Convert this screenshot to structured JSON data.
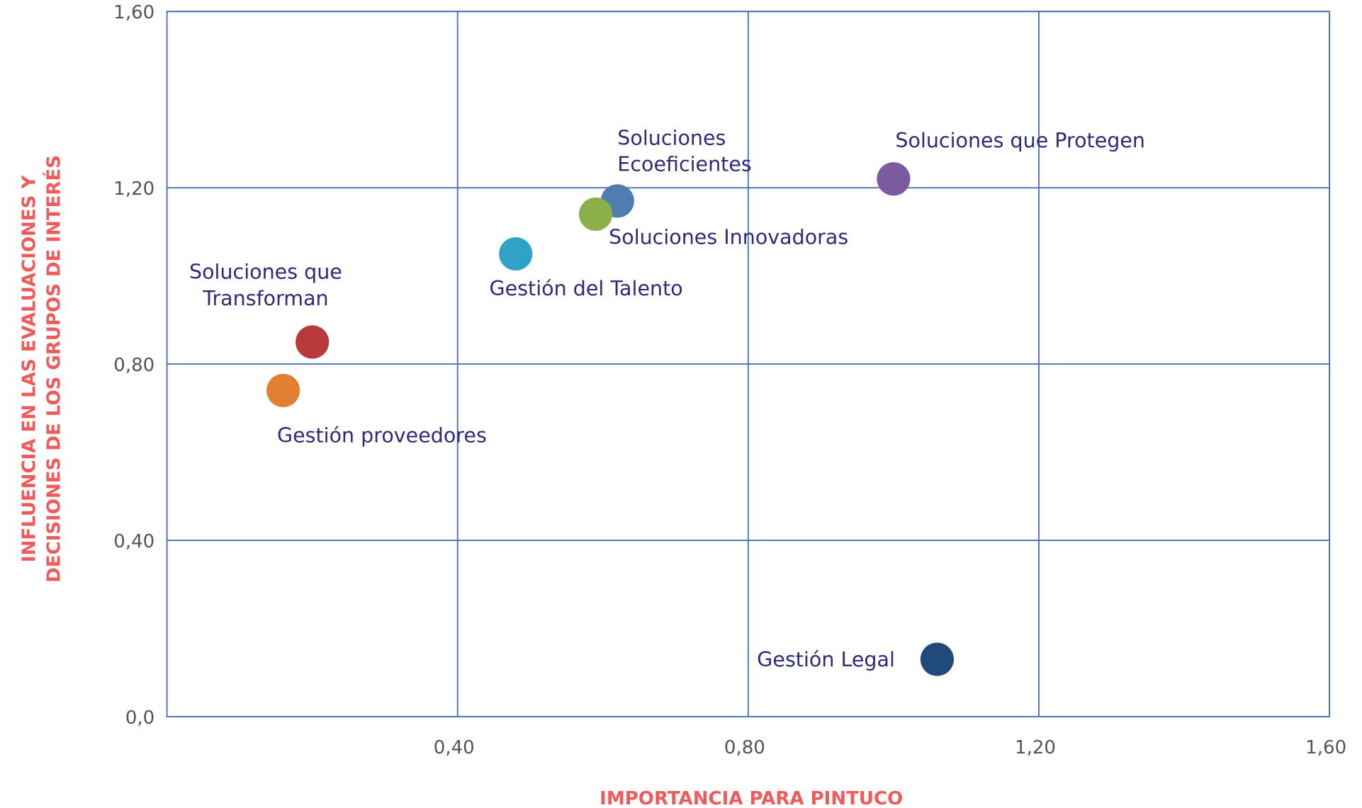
{
  "chart_data": {
    "type": "scatter",
    "x_label": "IMPORTANCIA PARA PINTUCO",
    "y_label": [
      "INFLUENCIA EN LAS EVALUACIONES Y",
      "DECISIONES DE LOS GRUPOS DE INTERÉS"
    ],
    "xlim": [
      0,
      1.6
    ],
    "ylim": [
      0,
      1.6
    ],
    "xticks": [
      {
        "value": 0.4,
        "label": "0,40"
      },
      {
        "value": 0.8,
        "label": "0,80"
      },
      {
        "value": 1.2,
        "label": "1,20"
      },
      {
        "value": 1.6,
        "label": "1,60"
      }
    ],
    "yticks": [
      {
        "value": 0,
        "label": "0,0"
      },
      {
        "value": 0.4,
        "label": "0,40"
      },
      {
        "value": 0.8,
        "label": "0,80"
      },
      {
        "value": 1.2,
        "label": "1,20"
      },
      {
        "value": 1.6,
        "label": "1,60"
      }
    ],
    "grid": true,
    "points": [
      {
        "label": [
          "Soluciones que Protegen"
        ],
        "x": 1.0,
        "y": 1.22,
        "color": "#7b5aa0"
      },
      {
        "label": [
          "Soluciones",
          "Ecoeficientes"
        ],
        "x": 0.62,
        "y": 1.17,
        "color": "#4f7db0"
      },
      {
        "label": [
          "Soluciones Innovadoras"
        ],
        "x": 0.59,
        "y": 1.14,
        "color": "#8bb04a"
      },
      {
        "label": [
          "Gestión del Talento"
        ],
        "x": 0.48,
        "y": 1.05,
        "color": "#2fa3c5"
      },
      {
        "label": [
          "Soluciones que",
          "Transforman"
        ],
        "x": 0.2,
        "y": 0.85,
        "color": "#b83a3a"
      },
      {
        "label": [
          "Gestión proveedores"
        ],
        "x": 0.16,
        "y": 0.74,
        "color": "#e37f32"
      },
      {
        "label": [
          "Gestión Legal"
        ],
        "x": 1.06,
        "y": 0.13,
        "color": "#1f4a7a"
      }
    ]
  }
}
